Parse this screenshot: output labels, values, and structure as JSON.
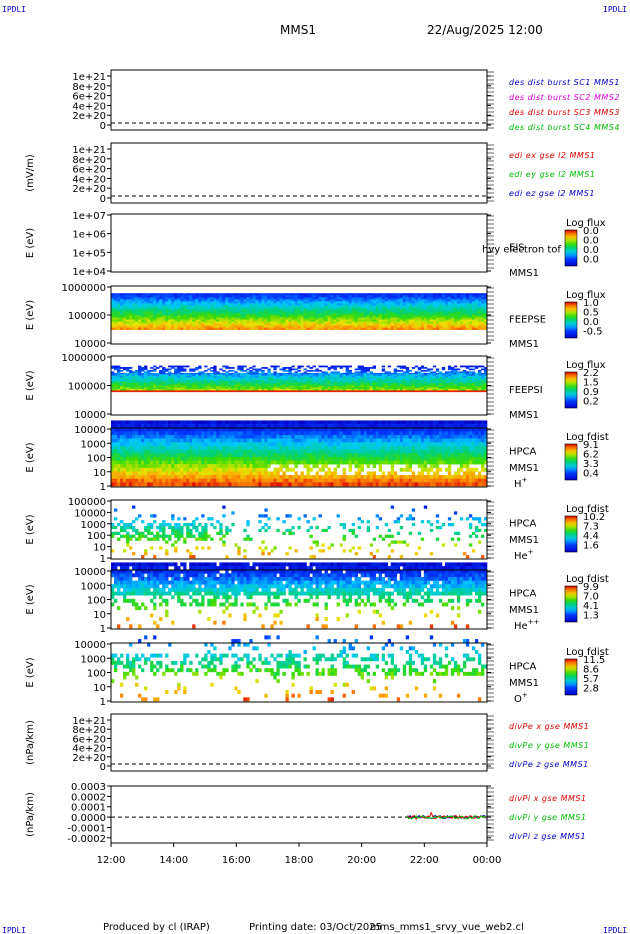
{
  "header": {
    "corner_left_top": "IPDLI",
    "corner_right_top": "IPDLI",
    "corner_left_bottom": "IPDLI",
    "corner_right_bottom": "IPDLI",
    "spacecraft": "MMS1",
    "datetime": "22/Aug/2025 12:00"
  },
  "footer": {
    "produced_by": "Produced by cl (IRAP)",
    "printing_date": "Printing date: 03/Oct/2025",
    "filename": "mms_mms1_srvy_vue_web2.cl"
  },
  "colors": {
    "blue": "#0000c8",
    "magenta": "#e000e0",
    "red": "#e00000",
    "green": "#00c000",
    "dashed": "#000000"
  },
  "chart_data": {
    "type": "multi-panel time series and spectrograms",
    "x_ticks": [
      "12:00",
      "14:00",
      "16:00",
      "18:00",
      "20:00",
      "22:00",
      "00:00"
    ],
    "x_range_hours": [
      12,
      24
    ],
    "panels": [
      {
        "type": "line",
        "ylabel": "",
        "ticks": [
          "1e+21",
          "8e+20",
          "6e+20",
          "4e+20",
          "2e+20",
          "0"
        ],
        "dashed_zero": true,
        "legend": [
          {
            "text": "des dist burst SC1 MMS1",
            "color": "#0000c8"
          },
          {
            "text": "des dist burst SC2 MMS2",
            "color": "#e000e0"
          },
          {
            "text": "des dist burst SC3 MMS3",
            "color": "#e00000"
          },
          {
            "text": "des dist burst SC4 MMS4",
            "color": "#00c000"
          }
        ],
        "series": []
      },
      {
        "type": "line",
        "ylabel": "(mV/m)",
        "ticks": [
          "1e+21",
          "8e+20",
          "6e+20",
          "4e+20",
          "2e+20",
          "0"
        ],
        "dashed_zero": true,
        "legend": [
          {
            "text": "edi ex gse l2 MMS1",
            "color": "#e00000"
          },
          {
            "text": "edi ey gse l2 MMS1",
            "color": "#00c000"
          },
          {
            "text": "edi ez gse l2 MMS1",
            "color": "#0000c8"
          }
        ],
        "series": []
      },
      {
        "type": "heatmap",
        "ylabel": "E (eV)",
        "ticks": [
          "1e+07",
          "1e+06",
          "1e+05",
          "1e+04"
        ],
        "right_labels": [
          "EIS",
          "MMS1"
        ],
        "overlay_text": "hvy electron tof",
        "colorbar": {
          "title": "Log flux",
          "values": [
            "0.0",
            "0.0",
            "0.0",
            "0.0"
          ]
        },
        "density": 0,
        "style": "empty"
      },
      {
        "type": "heatmap",
        "ylabel": "E (eV)",
        "ticks": [
          "1000000",
          "100000",
          "10000"
        ],
        "right_labels": [
          "FEEPSE",
          "MMS1"
        ],
        "colorbar": {
          "title": "Log flux",
          "values": [
            "1.0",
            "0.5",
            "0.0",
            "-0.5"
          ]
        },
        "style": "feepse",
        "energy_range_eV": [
          30000,
          600000
        ]
      },
      {
        "type": "heatmap",
        "ylabel": "E (eV)",
        "ticks": [
          "1000000",
          "100000",
          "10000"
        ],
        "right_labels": [
          "FEEPSI",
          "MMS1"
        ],
        "colorbar": {
          "title": "Log flux",
          "values": [
            "2.2",
            "1.5",
            "0.9",
            "0.2"
          ]
        },
        "style": "feepsi",
        "energy_range_eV": [
          60000,
          500000
        ]
      },
      {
        "type": "heatmap",
        "ylabel": "E (eV)",
        "ticks": [
          "10000",
          "1000",
          "100",
          "10",
          "1"
        ],
        "right_labels": [
          "HPCA",
          "MMS1",
          "H+"
        ],
        "colorbar": {
          "title": "Log fdist",
          "values": [
            "9.1",
            "6.2",
            "3.3",
            "0.4"
          ]
        },
        "style": "hplus",
        "energy_range_eV": [
          1,
          40000
        ]
      },
      {
        "type": "heatmap",
        "ylabel": "E (eV)",
        "ticks": [
          "100000",
          "10000",
          "1000",
          "100",
          "10",
          "1"
        ],
        "right_labels": [
          "HPCA",
          "MMS1",
          "He+"
        ],
        "colorbar": {
          "title": "Log fdist",
          "values": [
            "10.2",
            "7.3",
            "4.4",
            "1.6"
          ]
        },
        "style": "heplus",
        "energy_range_eV": [
          1,
          40000
        ]
      },
      {
        "type": "heatmap",
        "ylabel": "E (eV)",
        "ticks": [
          "10000",
          "1000",
          "100",
          "10",
          "1"
        ],
        "right_labels": [
          "HPCA",
          "MMS1",
          "He++"
        ],
        "colorbar": {
          "title": "Log fdist",
          "values": [
            "9.9",
            "7.0",
            "4.1",
            "1.3"
          ]
        },
        "style": "heplusplus",
        "energy_range_eV": [
          1,
          40000
        ]
      },
      {
        "type": "heatmap",
        "ylabel": "E (eV)",
        "ticks": [
          "10000",
          "1000",
          "100",
          "10",
          "1"
        ],
        "right_labels": [
          "HPCA",
          "MMS1",
          "O+"
        ],
        "colorbar": {
          "title": "Log fdist",
          "values": [
            "11.5",
            "8.6",
            "5.7",
            "2.8"
          ]
        },
        "style": "oplus",
        "energy_range_eV": [
          1,
          40000
        ]
      },
      {
        "type": "line",
        "ylabel": "(nPa/km)",
        "ticks": [
          "1e+21",
          "8e+20",
          "6e+20",
          "4e+20",
          "2e+20",
          "0"
        ],
        "dashed_zero": true,
        "legend": [
          {
            "text": "divPe x gse MMS1",
            "color": "#e00000"
          },
          {
            "text": "divPe y gse MMS1",
            "color": "#00c000"
          },
          {
            "text": "divPe z gse MMS1",
            "color": "#0000c8"
          }
        ],
        "series": []
      },
      {
        "type": "line",
        "ylabel": "(nPa/km)",
        "ticks": [
          "0.0003",
          "0.0002",
          "0.0001",
          "0.0000",
          "-0.0001",
          "-0.0002"
        ],
        "ylim": [
          -0.00025,
          0.0003
        ],
        "dashed_zero": true,
        "legend": [
          {
            "text": "divPi x gse MMS1",
            "color": "#e00000"
          },
          {
            "text": "divPi y gse MMS1",
            "color": "#00c000"
          },
          {
            "text": "divPi z gse MMS1",
            "color": "#0000c8"
          }
        ],
        "series_time_range_hours": [
          21.45,
          24
        ],
        "series_amplitude": 5e-05
      }
    ]
  }
}
